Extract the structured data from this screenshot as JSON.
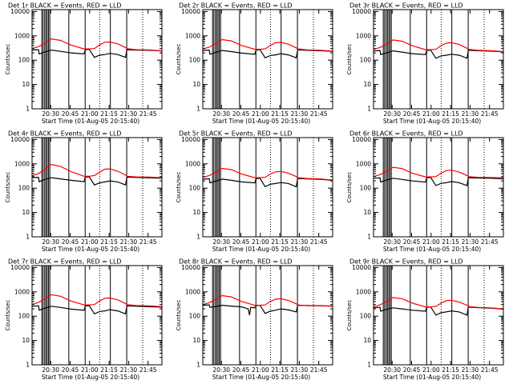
{
  "colors": {
    "events": "#000000",
    "lld": "#ff0000",
    "background": "#ffffff"
  },
  "common": {
    "ylabel": "Counts/sec",
    "xlabel": "Start Time (01-Aug-05 20:15:40)",
    "y_ticks": [
      "1",
      "10",
      "100",
      "1000",
      "10000"
    ],
    "x_ticks": [
      "20:30",
      "20:45",
      "21:00",
      "21:15",
      "21:30",
      "21:45"
    ],
    "x_tick_minutes": [
      14.33,
      29.33,
      44.33,
      59.33,
      74.33,
      89.33
    ]
  },
  "chart_data": [
    {
      "type": "line",
      "title": "Det 1r BLACK = Events, RED = LLD",
      "xlabel": "Start Time (01-Aug-05 20:15:40)",
      "ylabel": "Counts/sec",
      "xlim_minutes": [
        0,
        100
      ],
      "ylim": [
        1,
        12000
      ],
      "y_scale": "log",
      "grid": false,
      "solid_vlines_minutes": [
        7.5,
        8.5,
        9.7,
        10.7,
        11.7,
        12.7,
        13.7,
        28.3,
        40.9,
        60.3,
        72.9
      ],
      "dotted_vlines_minutes": [
        52.1,
        85.2
      ],
      "series": [
        {
          "name": "RED = LLD",
          "color": "#ff0000",
          "x": [
            0,
            5,
            10,
            15,
            22,
            30,
            40,
            44,
            48,
            52,
            56,
            60,
            66,
            72,
            73,
            80,
            90,
            100
          ],
          "values": [
            300,
            360,
            500,
            750,
            650,
            420,
            290,
            290,
            300,
            420,
            550,
            560,
            470,
            330,
            300,
            270,
            265,
            240
          ]
        },
        {
          "name": "BLACK = Events",
          "color": "#000000",
          "x": [
            0,
            5,
            5.5,
            10,
            15,
            22,
            30,
            40,
            41,
            44,
            48,
            52,
            56,
            60,
            66,
            72,
            73,
            80,
            90,
            100
          ],
          "values": [
            260,
            270,
            180,
            220,
            260,
            230,
            200,
            180,
            270,
            280,
            130,
            160,
            170,
            190,
            170,
            130,
            270,
            260,
            255,
            240
          ]
        }
      ]
    },
    {
      "type": "line",
      "title": "Det 2r BLACK = Events, RED = LLD",
      "xlabel": "Start Time (01-Aug-05 20:15:40)",
      "ylabel": "Counts/sec",
      "xlim_minutes": [
        0,
        100
      ],
      "ylim": [
        1,
        12000
      ],
      "y_scale": "log",
      "grid": false,
      "solid_vlines_minutes": [
        7.5,
        8.5,
        9.7,
        10.7,
        11.7,
        12.7,
        13.7,
        28.3,
        40.9,
        60.3,
        72.9
      ],
      "dotted_vlines_minutes": [
        52.1,
        85.2
      ],
      "series": [
        {
          "name": "RED = LLD",
          "color": "#ff0000",
          "x": [
            0,
            5,
            10,
            15,
            22,
            30,
            40,
            44,
            48,
            52,
            56,
            60,
            66,
            72,
            73,
            80,
            90,
            100
          ],
          "values": [
            290,
            340,
            480,
            700,
            620,
            400,
            280,
            280,
            290,
            400,
            520,
            540,
            450,
            320,
            290,
            265,
            255,
            235
          ]
        },
        {
          "name": "BLACK = Events",
          "color": "#000000",
          "x": [
            0,
            5,
            5.5,
            10,
            15,
            22,
            30,
            40,
            41,
            44,
            48,
            52,
            56,
            60,
            66,
            72,
            73,
            80,
            90,
            100
          ],
          "values": [
            250,
            260,
            175,
            210,
            250,
            225,
            195,
            175,
            260,
            270,
            125,
            155,
            165,
            185,
            165,
            125,
            265,
            255,
            245,
            230
          ]
        }
      ]
    },
    {
      "type": "line",
      "title": "Det 3r BLACK = Events, RED = LLD",
      "xlabel": "Start Time (01-Aug-05 20:15:40)",
      "ylabel": "Counts/sec",
      "xlim_minutes": [
        0,
        100
      ],
      "ylim": [
        1,
        12000
      ],
      "y_scale": "log",
      "grid": false,
      "solid_vlines_minutes": [
        7.5,
        8.5,
        9.7,
        10.7,
        11.7,
        12.7,
        13.7,
        28.3,
        40.9,
        60.3,
        72.9
      ],
      "dotted_vlines_minutes": [
        52.1,
        85.2
      ],
      "series": [
        {
          "name": "RED = LLD",
          "color": "#ff0000",
          "x": [
            0,
            5,
            10,
            15,
            22,
            30,
            40,
            44,
            48,
            52,
            56,
            60,
            66,
            72,
            73,
            80,
            90,
            100
          ],
          "values": [
            280,
            330,
            460,
            680,
            600,
            390,
            270,
            270,
            280,
            390,
            500,
            520,
            440,
            310,
            280,
            255,
            245,
            225
          ]
        },
        {
          "name": "BLACK = Events",
          "color": "#000000",
          "x": [
            0,
            5,
            5.5,
            10,
            15,
            22,
            30,
            40,
            41,
            44,
            48,
            52,
            56,
            60,
            66,
            72,
            73,
            80,
            90,
            100
          ],
          "values": [
            240,
            250,
            170,
            200,
            240,
            215,
            185,
            170,
            250,
            260,
            120,
            150,
            160,
            175,
            160,
            120,
            255,
            245,
            235,
            220
          ]
        }
      ]
    },
    {
      "type": "line",
      "title": "Det 4r BLACK = Events, RED = LLD",
      "xlabel": "Start Time (01-Aug-05 20:15:40)",
      "ylabel": "Counts/sec",
      "xlim_minutes": [
        0,
        100
      ],
      "ylim": [
        1,
        12000
      ],
      "y_scale": "log",
      "grid": false,
      "solid_vlines_minutes": [
        7.5,
        8.5,
        9.7,
        10.7,
        11.7,
        12.7,
        13.7,
        28.3,
        40.9,
        60.3,
        72.9
      ],
      "dotted_vlines_minutes": [
        52.1,
        85.2
      ],
      "series": [
        {
          "name": "RED = LLD",
          "color": "#ff0000",
          "x": [
            0,
            5,
            10,
            15,
            22,
            30,
            40,
            44,
            48,
            52,
            56,
            60,
            66,
            72,
            73,
            80,
            90,
            100
          ],
          "values": [
            320,
            400,
            600,
            950,
            780,
            480,
            310,
            310,
            330,
            460,
            600,
            620,
            500,
            350,
            310,
            290,
            285,
            270
          ]
        },
        {
          "name": "BLACK = Events",
          "color": "#000000",
          "x": [
            0,
            5,
            5.5,
            10,
            15,
            22,
            30,
            40,
            41,
            44,
            48,
            52,
            56,
            60,
            66,
            72,
            73,
            80,
            90,
            100
          ],
          "values": [
            270,
            280,
            185,
            230,
            270,
            240,
            210,
            185,
            285,
            295,
            135,
            165,
            180,
            200,
            180,
            135,
            285,
            275,
            265,
            255
          ]
        }
      ]
    },
    {
      "type": "line",
      "title": "Det 5r BLACK = Events, RED = LLD",
      "xlabel": "Start Time (01-Aug-05 20:15:40)",
      "ylabel": "Counts/sec",
      "xlim_minutes": [
        0,
        100
      ],
      "ylim": [
        1,
        12000
      ],
      "y_scale": "log",
      "grid": false,
      "solid_vlines_minutes": [
        7.5,
        8.5,
        9.7,
        10.7,
        11.7,
        12.7,
        13.7,
        28.3,
        40.9,
        60.3,
        72.9
      ],
      "dotted_vlines_minutes": [
        52.1,
        85.2
      ],
      "series": [
        {
          "name": "RED = LLD",
          "color": "#ff0000",
          "x": [
            0,
            5,
            10,
            15,
            22,
            30,
            40,
            44,
            48,
            52,
            56,
            60,
            66,
            72,
            73,
            80,
            90,
            100
          ],
          "values": [
            280,
            330,
            450,
            650,
            580,
            380,
            270,
            270,
            280,
            380,
            470,
            490,
            410,
            300,
            270,
            250,
            240,
            215
          ]
        },
        {
          "name": "BLACK = Events",
          "color": "#000000",
          "x": [
            0,
            5,
            5.5,
            10,
            15,
            22,
            30,
            40,
            41,
            44,
            48,
            52,
            56,
            60,
            66,
            72,
            73,
            80,
            90,
            100
          ],
          "values": [
            235,
            245,
            165,
            195,
            235,
            210,
            180,
            165,
            245,
            255,
            115,
            145,
            155,
            170,
            155,
            115,
            250,
            240,
            230,
            210
          ]
        }
      ]
    },
    {
      "type": "line",
      "title": "Det 6r BLACK = Events, RED = LLD",
      "xlabel": "Start Time (01-Aug-05 20:15:40)",
      "ylabel": "Counts/sec",
      "xlim_minutes": [
        0,
        100
      ],
      "ylim": [
        1,
        12000
      ],
      "y_scale": "log",
      "grid": false,
      "solid_vlines_minutes": [
        7.5,
        8.5,
        9.7,
        10.7,
        11.7,
        12.7,
        13.7,
        28.3,
        40.9,
        60.3,
        72.9
      ],
      "dotted_vlines_minutes": [
        52.1,
        85.2
      ],
      "series": [
        {
          "name": "RED = LLD",
          "color": "#ff0000",
          "x": [
            0,
            5,
            10,
            15,
            22,
            30,
            40,
            44,
            48,
            52,
            56,
            60,
            66,
            72,
            73,
            80,
            90,
            100
          ],
          "values": [
            300,
            360,
            500,
            720,
            640,
            410,
            290,
            290,
            300,
            410,
            530,
            550,
            460,
            330,
            300,
            280,
            275,
            265
          ]
        },
        {
          "name": "BLACK = Events",
          "color": "#000000",
          "x": [
            0,
            5,
            5.5,
            10,
            15,
            22,
            30,
            40,
            41,
            44,
            48,
            52,
            56,
            60,
            66,
            72,
            73,
            80,
            90,
            100
          ],
          "values": [
            255,
            265,
            178,
            215,
            255,
            228,
            198,
            178,
            265,
            275,
            128,
            158,
            168,
            188,
            168,
            128,
            270,
            262,
            255,
            245
          ]
        }
      ]
    },
    {
      "type": "line",
      "title": "Det 7r BLACK = Events, RED = LLD",
      "xlabel": "Start Time (01-Aug-05 20:15:40)",
      "ylabel": "Counts/sec",
      "xlim_minutes": [
        0,
        100
      ],
      "ylim": [
        1,
        12000
      ],
      "y_scale": "log",
      "grid": false,
      "solid_vlines_minutes": [
        7.5,
        8.5,
        9.7,
        10.7,
        11.7,
        12.7,
        13.7,
        28.3,
        40.9,
        60.3,
        72.9
      ],
      "dotted_vlines_minutes": [
        52.1,
        85.2
      ],
      "series": [
        {
          "name": "RED = LLD",
          "color": "#ff0000",
          "x": [
            0,
            5,
            10,
            15,
            22,
            30,
            40,
            44,
            48,
            52,
            56,
            60,
            66,
            72,
            73,
            80,
            90,
            100
          ],
          "values": [
            300,
            370,
            520,
            760,
            660,
            420,
            290,
            290,
            300,
            420,
            540,
            560,
            470,
            330,
            300,
            275,
            265,
            245
          ]
        },
        {
          "name": "BLACK = Events",
          "color": "#000000",
          "x": [
            0,
            5,
            5.5,
            10,
            15,
            22,
            30,
            40,
            41,
            44,
            48,
            52,
            56,
            60,
            66,
            72,
            73,
            80,
            90,
            100
          ],
          "values": [
            255,
            265,
            175,
            215,
            255,
            228,
            195,
            175,
            262,
            272,
            125,
            155,
            165,
            185,
            165,
            125,
            265,
            255,
            245,
            235
          ]
        }
      ]
    },
    {
      "type": "line",
      "title": "Det 8r BLACK = Events, RED = LLD",
      "xlabel": "Start Time (01-Aug-05 20:15:40)",
      "ylabel": "Counts/sec",
      "xlim_minutes": [
        0,
        100
      ],
      "ylim": [
        1,
        12000
      ],
      "y_scale": "log",
      "grid": false,
      "solid_vlines_minutes": [
        7.5,
        8.5,
        9.7,
        10.7,
        11.7,
        12.7,
        13.7,
        28.3,
        40.9,
        60.3,
        72.9
      ],
      "dotted_vlines_minutes": [
        52.1,
        85.2
      ],
      "series": [
        {
          "name": "RED = LLD",
          "color": "#ff0000",
          "x": [
            0,
            5,
            10,
            15,
            22,
            30,
            40,
            44,
            48,
            52,
            56,
            60,
            66,
            72,
            73,
            80,
            90,
            100
          ],
          "values": [
            300,
            360,
            490,
            700,
            620,
            400,
            280,
            280,
            290,
            400,
            500,
            520,
            440,
            320,
            290,
            270,
            265,
            255
          ]
        },
        {
          "name": "BLACK = Events",
          "color": "#000000",
          "x": [
            0,
            5,
            5.5,
            10,
            15,
            22,
            30,
            35,
            36,
            37,
            40,
            41,
            44,
            48,
            52,
            56,
            60,
            66,
            72,
            73,
            80,
            90,
            100
          ],
          "values": [
            280,
            290,
            230,
            250,
            280,
            260,
            240,
            200,
            110,
            230,
            220,
            270,
            280,
            130,
            160,
            175,
            200,
            180,
            150,
            280,
            275,
            270,
            260
          ]
        }
      ]
    },
    {
      "type": "line",
      "title": "Det 9r BLACK = Events, RED = LLD",
      "xlabel": "Start Time (01-Aug-05 20:15:40)",
      "ylabel": "Counts/sec",
      "xlim_minutes": [
        0,
        100
      ],
      "ylim": [
        1,
        12000
      ],
      "y_scale": "log",
      "grid": false,
      "solid_vlines_minutes": [
        7.5,
        8.5,
        9.7,
        10.7,
        11.7,
        12.7,
        13.7,
        28.3,
        40.9,
        60.3,
        72.9
      ],
      "dotted_vlines_minutes": [
        52.1,
        85.2
      ],
      "series": [
        {
          "name": "RED = LLD",
          "color": "#ff0000",
          "x": [
            0,
            5,
            10,
            15,
            22,
            30,
            40,
            44,
            48,
            52,
            56,
            60,
            66,
            72,
            73,
            80,
            90,
            100
          ],
          "values": [
            240,
            290,
            400,
            580,
            520,
            340,
            240,
            240,
            250,
            340,
            430,
            450,
            380,
            280,
            250,
            230,
            220,
            200
          ]
        },
        {
          "name": "BLACK = Events",
          "color": "#000000",
          "x": [
            0,
            5,
            5.5,
            10,
            15,
            22,
            30,
            40,
            41,
            44,
            48,
            52,
            56,
            60,
            66,
            72,
            73,
            80,
            90,
            100
          ],
          "values": [
            220,
            230,
            160,
            190,
            220,
            200,
            175,
            160,
            230,
            240,
            110,
            140,
            150,
            165,
            150,
            110,
            235,
            225,
            215,
            195
          ]
        }
      ]
    }
  ]
}
